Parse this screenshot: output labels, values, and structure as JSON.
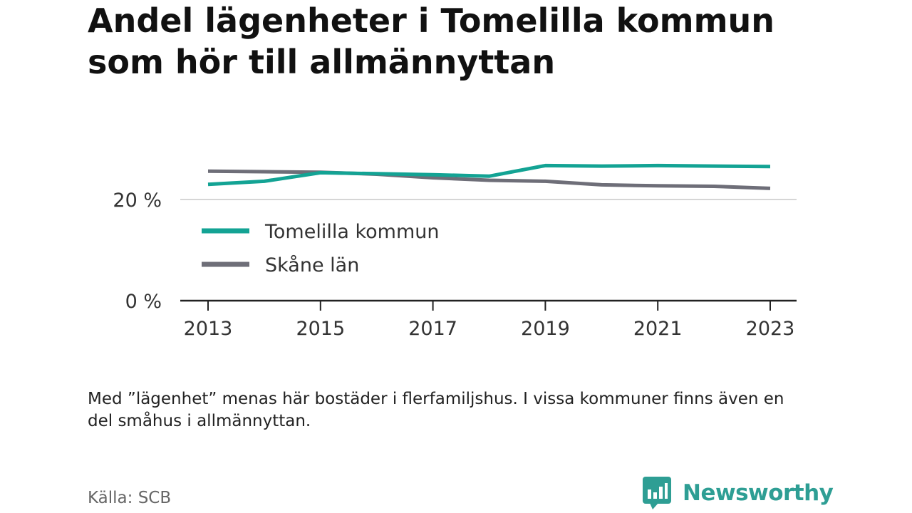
{
  "title": "Andel lägenheter i Tomelilla kommun som hör till allmännyttan",
  "note": "Med ”lägenhet” menas här bostäder i flerfamiljshus. I vissa kommuner finns även en del småhus i allmännyttan.",
  "source": "Källa: SCB",
  "brand": {
    "name": "Newsworthy",
    "icon": "newsworthy-logo-icon",
    "color": "#2e9e94"
  },
  "chart_data": {
    "type": "line",
    "title": "Andel lägenheter i Tomelilla kommun som hör till allmännyttan",
    "xlabel": "",
    "ylabel": "",
    "x": [
      2013,
      2014,
      2015,
      2016,
      2017,
      2018,
      2019,
      2020,
      2021,
      2022,
      2023
    ],
    "x_ticks": [
      "2013",
      "2015",
      "2017",
      "2019",
      "2021",
      "2023"
    ],
    "x_tick_values": [
      2013,
      2015,
      2017,
      2019,
      2021,
      2023
    ],
    "y_ticks": [
      "0 %",
      "20 %"
    ],
    "y_tick_values": [
      0,
      20
    ],
    "ylim": [
      0,
      27
    ],
    "grid": "horizontal",
    "legend": "inside, upper-left",
    "series": [
      {
        "name": "Tomelilla kommun",
        "color": "#13a394",
        "values": [
          23.0,
          23.6,
          25.3,
          25.1,
          24.9,
          24.6,
          26.7,
          26.6,
          26.7,
          26.6,
          26.5
        ]
      },
      {
        "name": "Skåne län",
        "color": "#6e6e78",
        "values": [
          25.6,
          25.5,
          25.4,
          25.0,
          24.3,
          23.8,
          23.6,
          22.9,
          22.7,
          22.6,
          22.2
        ]
      }
    ]
  }
}
